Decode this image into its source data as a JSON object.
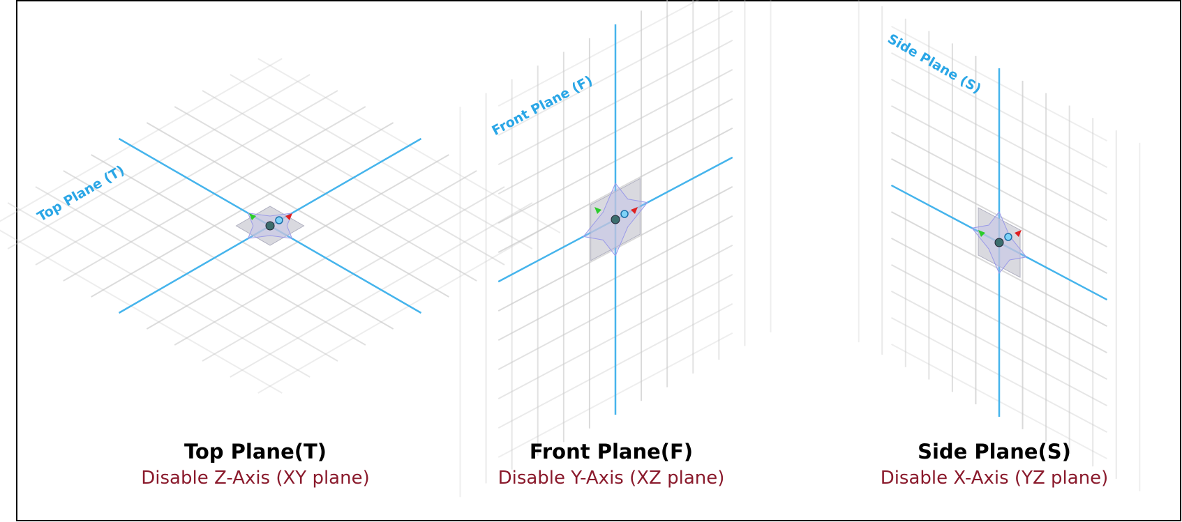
{
  "panels": [
    {
      "plane_label": "Top Plane (T)",
      "title": "Top Plane(T)",
      "subtitle": "Disable Z-Axis (XY plane)"
    },
    {
      "plane_label": "Front Plane (F)",
      "title": "Front Plane(F)",
      "subtitle": "Disable Y-Axis (XZ plane)"
    },
    {
      "plane_label": "Side Plane (S)",
      "title": "Side Plane(S)",
      "subtitle": "Disable X-Axis (YZ plane)"
    }
  ]
}
